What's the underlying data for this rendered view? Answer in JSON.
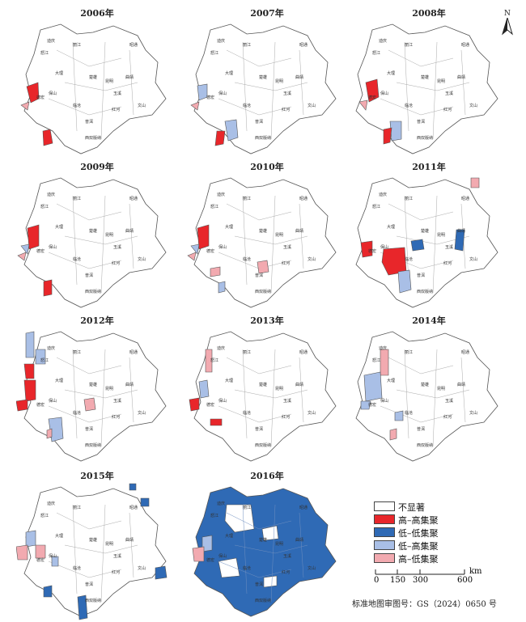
{
  "panels": [
    {
      "title": "2006年"
    },
    {
      "title": "2007年"
    },
    {
      "title": "2008年"
    },
    {
      "title": "2009年"
    },
    {
      "title": "2010年"
    },
    {
      "title": "2011年"
    },
    {
      "title": "2012年"
    },
    {
      "title": "2013年"
    },
    {
      "title": "2014年"
    },
    {
      "title": "2015年"
    },
    {
      "title": "2016年"
    }
  ],
  "city_labels": [
    "迪庆",
    "丽江",
    "怒江",
    "大理",
    "楚雄",
    "昆明",
    "曲靖",
    "玉溪",
    "红河",
    "文山",
    "普洱",
    "临沧",
    "保山",
    "德宏",
    "西双版纳",
    "昭通"
  ],
  "legend": {
    "items": [
      {
        "label": "不显著",
        "color": "#ffffff"
      },
      {
        "label": "高–高集聚",
        "color": "#e8262a"
      },
      {
        "label": "低–低集聚",
        "color": "#2f6ab5"
      },
      {
        "label": "低–高集聚",
        "color": "#a9bfe6"
      },
      {
        "label": "高–低集聚",
        "color": "#f2aab0"
      }
    ]
  },
  "scale_bar": {
    "ticks": [
      "0",
      "150",
      "300",
      "600"
    ],
    "unit": "km"
  },
  "north_arrow": {
    "label": "N"
  },
  "footnote": "标准地图审图号：GS（2024）0650 号"
}
